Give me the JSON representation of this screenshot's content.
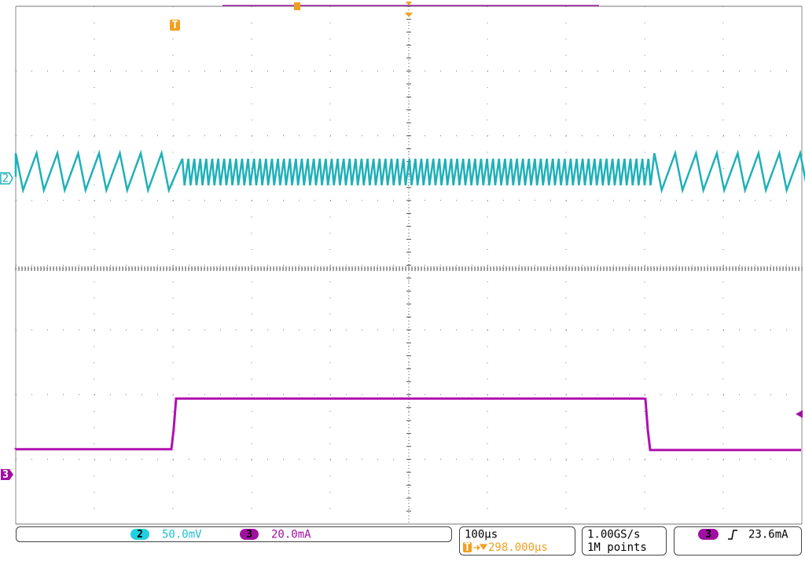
{
  "markers": {
    "ch2": "2",
    "ch3": "3",
    "trigger": "T"
  },
  "status": {
    "ch2": {
      "label": "2",
      "scale": "50.0mV"
    },
    "ch3": {
      "label": "3",
      "scale": "20.0mA"
    },
    "horizontal": {
      "scale": "100µs",
      "delay": "298.000µs"
    },
    "acquisition": {
      "rate": "1.00GS/s",
      "length": "1M points"
    },
    "trigger": {
      "source": "3",
      "level": "23.6mA"
    }
  }
}
